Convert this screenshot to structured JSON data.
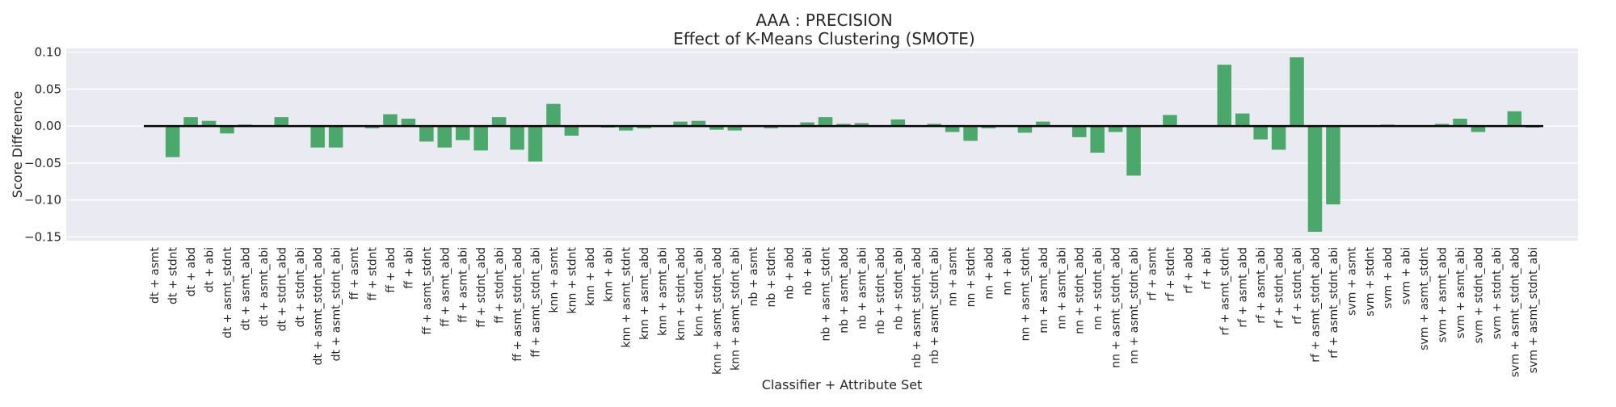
{
  "chart_data": {
    "type": "bar",
    "title": "AAA : PRECISION",
    "subtitle": "Effect of K-Means Clustering (SMOTE)",
    "xlabel": "Classifier + Attribute Set",
    "ylabel": "Score Difference",
    "ylim": [
      -0.155,
      0.105
    ],
    "yticks": [
      "0.10",
      "0.05",
      "0.00",
      "−0.05",
      "−0.10",
      "−0.15"
    ],
    "ytick_values": [
      0.1,
      0.05,
      0.0,
      -0.05,
      -0.1,
      -0.15
    ],
    "grid": true,
    "bar_color": "#4aa86b",
    "baseline_color": "#000000",
    "background": "#eaeaf2",
    "categories": [
      "dt + asmt",
      "dt + stdnt",
      "dt + abd",
      "dt + abi",
      "dt + asmt_stdnt",
      "dt + asmt_abd",
      "dt + asmt_abi",
      "dt + stdnt_abd",
      "dt + stdnt_abi",
      "dt + asmt_stdnt_abd",
      "dt + asmt_stdnt_abi",
      "ff + asmt",
      "ff + stdnt",
      "ff + abd",
      "ff + abi",
      "ff + asmt_stdnt",
      "ff + asmt_abd",
      "ff + asmt_abi",
      "ff + stdnt_abd",
      "ff + stdnt_abi",
      "ff + asmt_stdnt_abd",
      "ff + asmt_stdnt_abi",
      "knn + asmt",
      "knn + stdnt",
      "knn + abd",
      "knn + abi",
      "knn + asmt_stdnt",
      "knn + asmt_abd",
      "knn + asmt_abi",
      "knn + stdnt_abd",
      "knn + stdnt_abi",
      "knn + asmt_stdnt_abd",
      "knn + asmt_stdnt_abi",
      "nb + asmt",
      "nb + stdnt",
      "nb + abd",
      "nb + abi",
      "nb + asmt_stdnt",
      "nb + asmt_abd",
      "nb + asmt_abi",
      "nb + stdnt_abd",
      "nb + stdnt_abi",
      "nb + asmt_stdnt_abd",
      "nb + asmt_stdnt_abi",
      "nn + asmt",
      "nn + stdnt",
      "nn + abd",
      "nn + abi",
      "nn + asmt_stdnt",
      "nn + asmt_abd",
      "nn + asmt_abi",
      "nn + stdnt_abd",
      "nn + stdnt_abi",
      "nn + asmt_stdnt_abd",
      "nn + asmt_stdnt_abi",
      "rf + asmt",
      "rf + stdnt",
      "rf + abd",
      "rf + abi",
      "rf + asmt_stdnt",
      "rf + asmt_abd",
      "rf + asmt_abi",
      "rf + stdnt_abd",
      "rf + stdnt_abi",
      "rf + asmt_stdnt_abd",
      "rf + asmt_stdnt_abi",
      "svm + asmt",
      "svm + stdnt",
      "svm + abd",
      "svm + abi",
      "svm + asmt_stdnt",
      "svm + asmt_abd",
      "svm + asmt_abi",
      "svm + stdnt_abd",
      "svm + stdnt_abi",
      "svm + asmt_stdnt_abd",
      "svm + asmt_stdnt_abi"
    ],
    "values": [
      0.0,
      -0.042,
      0.012,
      0.007,
      -0.01,
      0.002,
      0.0,
      0.012,
      0.0,
      -0.029,
      -0.029,
      0.0,
      -0.003,
      0.016,
      0.01,
      -0.021,
      -0.029,
      -0.019,
      -0.033,
      0.012,
      -0.032,
      -0.048,
      0.03,
      -0.013,
      0.0,
      -0.002,
      -0.006,
      -0.003,
      0.0,
      0.006,
      0.007,
      -0.005,
      -0.006,
      0.0,
      -0.003,
      -0.001,
      0.005,
      0.012,
      0.003,
      0.004,
      0.0,
      0.009,
      0.0,
      0.003,
      -0.008,
      -0.02,
      -0.003,
      0.0,
      -0.009,
      0.006,
      0.0,
      -0.015,
      -0.036,
      -0.008,
      -0.067,
      0.0,
      0.015,
      0.0,
      0.0,
      0.083,
      0.017,
      -0.018,
      -0.032,
      0.093,
      -0.143,
      -0.106,
      0.0,
      0.0,
      0.002,
      0.0,
      0.0,
      0.003,
      0.01,
      -0.008,
      0.0,
      0.02,
      -0.002
    ]
  }
}
